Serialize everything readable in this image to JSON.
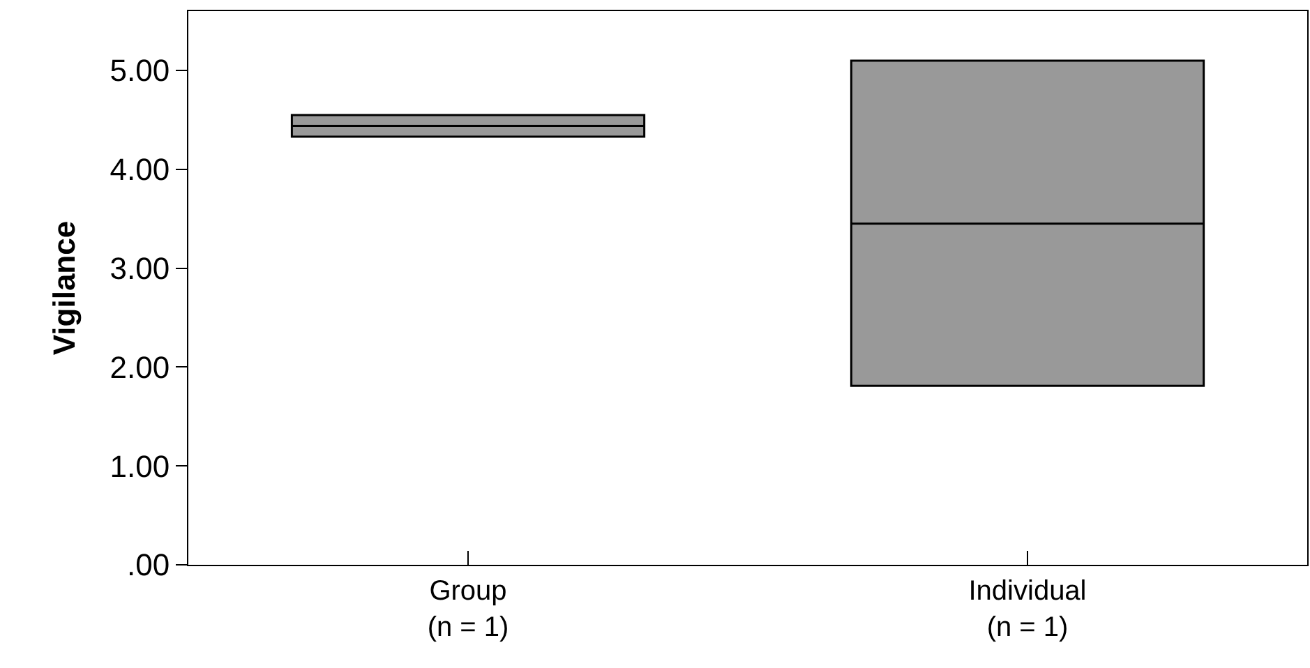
{
  "chart_data": {
    "type": "box",
    "ylabel": "Vigilance",
    "categories": [
      "Group\n(n = 1)",
      "Individual\n(n = 1)"
    ],
    "boxes": [
      {
        "low": 4.33,
        "q1": 4.33,
        "median": 4.44,
        "q3": 4.55,
        "high": 4.55
      },
      {
        "low": 1.81,
        "q1": 1.81,
        "median": 3.45,
        "q3": 5.1,
        "high": 5.1
      }
    ],
    "color": "#999999",
    "ylim": [
      0,
      5.6
    ],
    "yticks": [
      {
        "value": 0,
        "label": ".00"
      },
      {
        "value": 1,
        "label": "1.00"
      },
      {
        "value": 2,
        "label": "2.00"
      },
      {
        "value": 3,
        "label": "3.00"
      },
      {
        "value": 4,
        "label": "4.00"
      },
      {
        "value": 5,
        "label": "5.00"
      }
    ],
    "grid": false
  }
}
